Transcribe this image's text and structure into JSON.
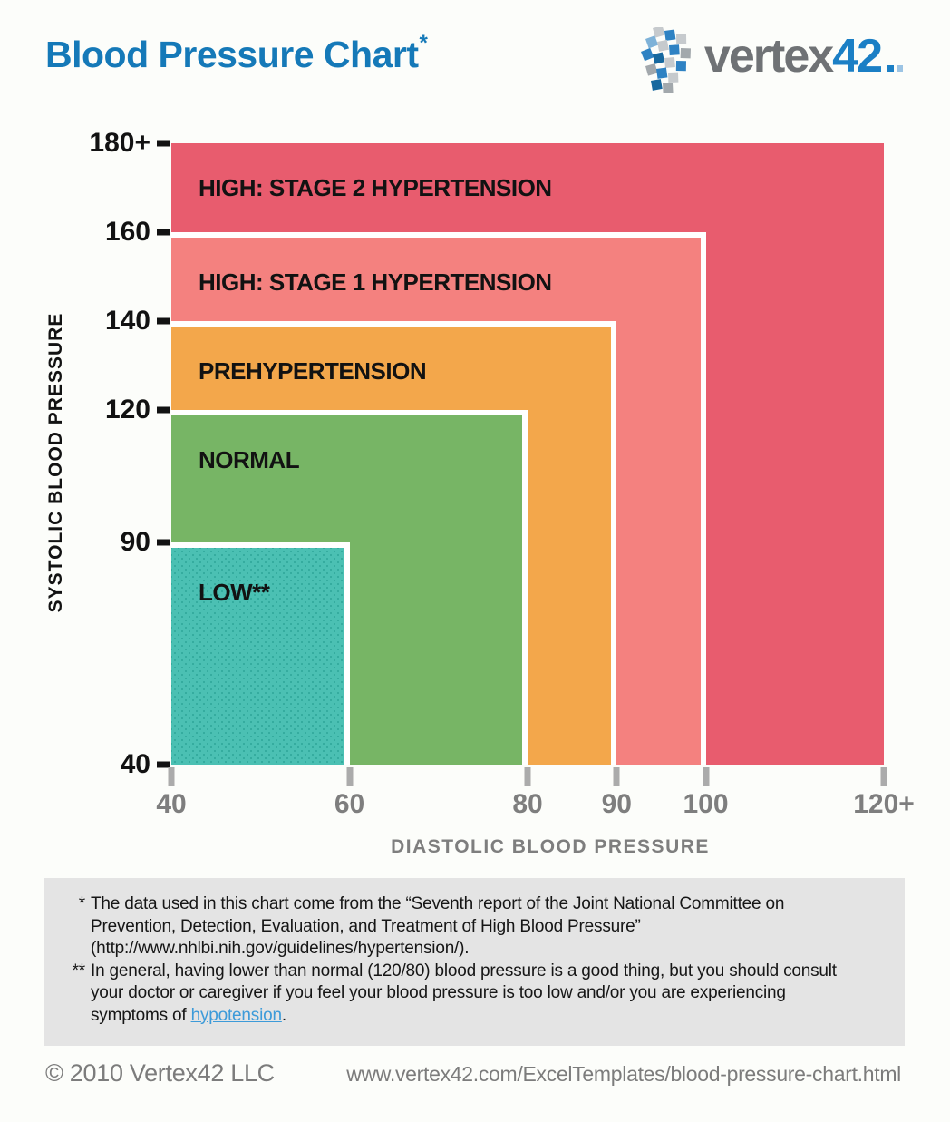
{
  "header": {
    "title": "Blood Pressure Chart",
    "asterisk": "*"
  },
  "logo": {
    "word": "vertex",
    "number": "42",
    "brand_blue": "#1B7FC5",
    "brand_gray": "#6F7275"
  },
  "chart_data": {
    "type": "area",
    "title": "Blood Pressure Chart",
    "xlabel": "DIASTOLIC BLOOD PRESSURE",
    "ylabel": "SYSTOLIC BLOOD PRESSURE",
    "xlim": [
      40,
      120
    ],
    "ylim": [
      40,
      180
    ],
    "grid": false,
    "legend": "labels-inside-regions",
    "x_tick_labels": [
      "40",
      "60",
      "80",
      "90",
      "100",
      "120+"
    ],
    "x_tick_values": [
      40,
      60,
      80,
      90,
      100,
      120
    ],
    "y_tick_labels": [
      "40",
      "90",
      "120",
      "140",
      "160",
      "180+"
    ],
    "y_tick_values": [
      40,
      90,
      120,
      140,
      160,
      180
    ],
    "regions": [
      {
        "label": "HIGH: STAGE 2 HYPERTENSION",
        "diastolic_range": [
          40,
          120
        ],
        "systolic_range": [
          40,
          180
        ],
        "color": "#E85C6E"
      },
      {
        "label": "HIGH: STAGE 1 HYPERTENSION",
        "diastolic_range": [
          40,
          100
        ],
        "systolic_range": [
          40,
          160
        ],
        "color": "#F4817F"
      },
      {
        "label": "PREHYPERTENSION",
        "diastolic_range": [
          40,
          90
        ],
        "systolic_range": [
          40,
          140
        ],
        "color": "#F3A74B"
      },
      {
        "label": "NORMAL",
        "diastolic_range": [
          40,
          80
        ],
        "systolic_range": [
          40,
          120
        ],
        "color": "#77B565"
      },
      {
        "label": "LOW**",
        "diastolic_range": [
          40,
          60
        ],
        "systolic_range": [
          40,
          90
        ],
        "color": "#4BC0B3",
        "pattern": "dots"
      }
    ]
  },
  "footnotes": [
    {
      "marker": "*",
      "text": "The data used in this chart come from the “Seventh report of the Joint National Committee on Prevention, Detection, Evaluation, and Treatment of High Blood Pressure” (http://www.nhlbi.nih.gov/guidelines/hypertension/)."
    },
    {
      "marker": "**",
      "text": "In general, having lower than normal (120/80) blood pressure is a good thing, but you should consult your doctor or caregiver if you feel your blood pressure is too low and/or you are experiencing symptoms of ",
      "link": "hypotension",
      "text_after": "."
    }
  ],
  "footer": {
    "copyright": "© 2010 Vertex42 LLC",
    "url": "www.vertex42.com/ExcelTemplates/blood-pressure-chart.html"
  },
  "colors": {
    "title_blue": "#1579B8",
    "link_blue": "#3D9BD9",
    "axis_text_gray": "#7E7E7E",
    "x_tick_gray": "#ABABAB",
    "y_tick_black": "#121212",
    "footnote_bg": "#E4E4E4",
    "white_divider": "#FFFFFF"
  }
}
